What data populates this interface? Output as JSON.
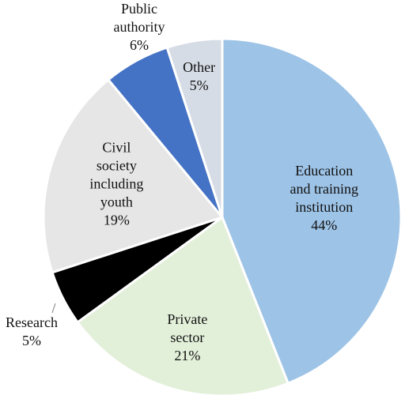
{
  "chart_data": {
    "type": "pie",
    "title": "",
    "legend": "none",
    "slices": [
      {
        "label_lines": [
          "Education",
          "and training",
          "institution"
        ],
        "pct_label": "44%",
        "value": 44,
        "color": "#9dc3e6"
      },
      {
        "label_lines": [
          "Private",
          "sector"
        ],
        "pct_label": "21%",
        "value": 21,
        "color": "#e2efd9"
      },
      {
        "label_lines": [
          "Research"
        ],
        "pct_label": "5%",
        "value": 5,
        "color": "#000000"
      },
      {
        "label_lines": [
          "Civil",
          "society",
          "including",
          "youth"
        ],
        "pct_label": "19%",
        "value": 19,
        "color": "#e7e6e6"
      },
      {
        "label_lines": [
          "Public",
          "authority"
        ],
        "pct_label": "6%",
        "value": 6,
        "color": "#4472c4"
      },
      {
        "label_lines": [
          "Other"
        ],
        "pct_label": "5%",
        "value": 5,
        "color": "#d6dce5"
      }
    ]
  }
}
